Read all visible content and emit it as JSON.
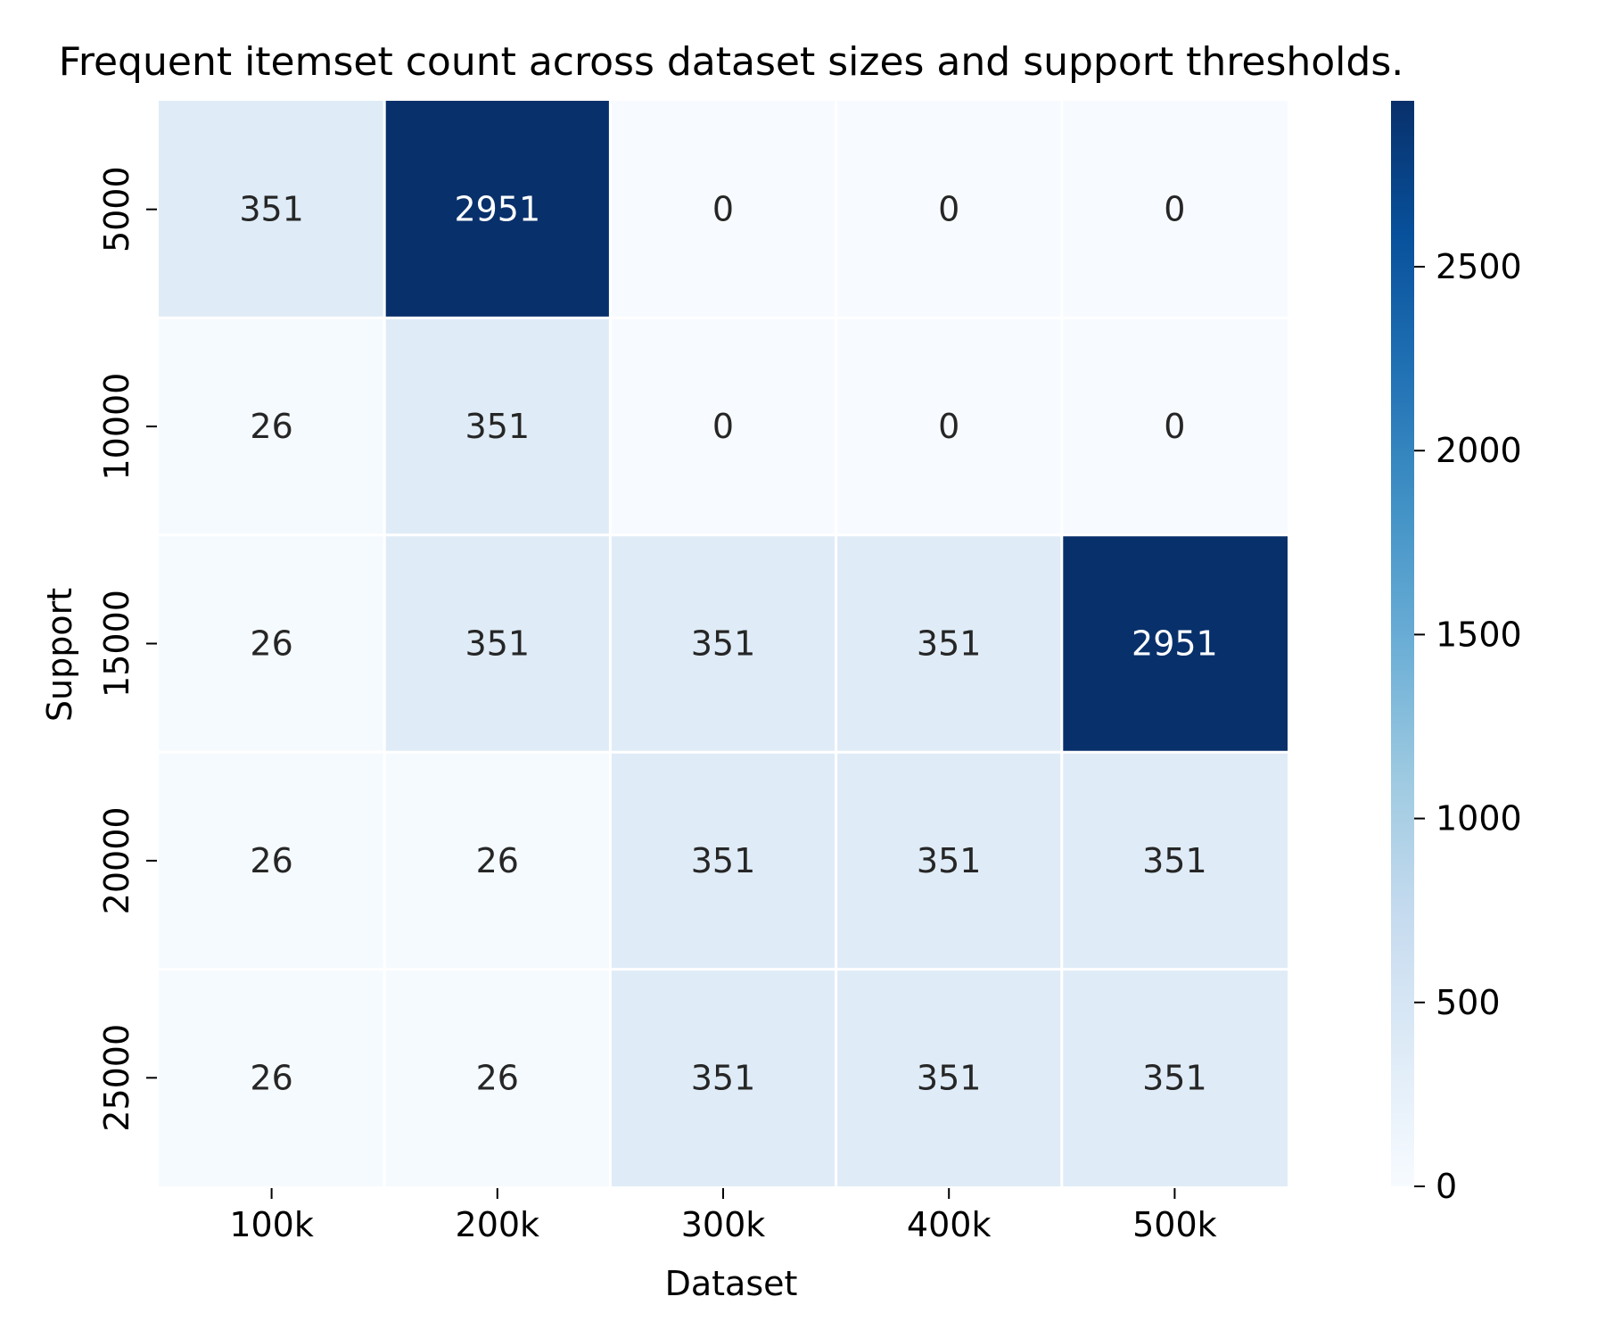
{
  "chart_data": {
    "type": "heatmap",
    "title": "Frequent itemset count across dataset sizes and support thresholds.",
    "xlabel": "Dataset",
    "ylabel": "Support",
    "x_categories": [
      "100k",
      "200k",
      "300k",
      "400k",
      "500k"
    ],
    "y_categories": [
      "5000",
      "10000",
      "15000",
      "20000",
      "25000"
    ],
    "values": [
      [
        351,
        2951,
        0,
        0,
        0
      ],
      [
        26,
        351,
        0,
        0,
        0
      ],
      [
        26,
        351,
        351,
        351,
        2951
      ],
      [
        26,
        26,
        351,
        351,
        351
      ],
      [
        26,
        26,
        351,
        351,
        351
      ]
    ],
    "colorbar": {
      "colormap": "Blues",
      "range": [
        0,
        2951
      ],
      "ticks": [
        0,
        500,
        1000,
        1500,
        2000,
        2500
      ]
    },
    "annotations_shown": true,
    "cell_separator_color": "#ffffff"
  }
}
